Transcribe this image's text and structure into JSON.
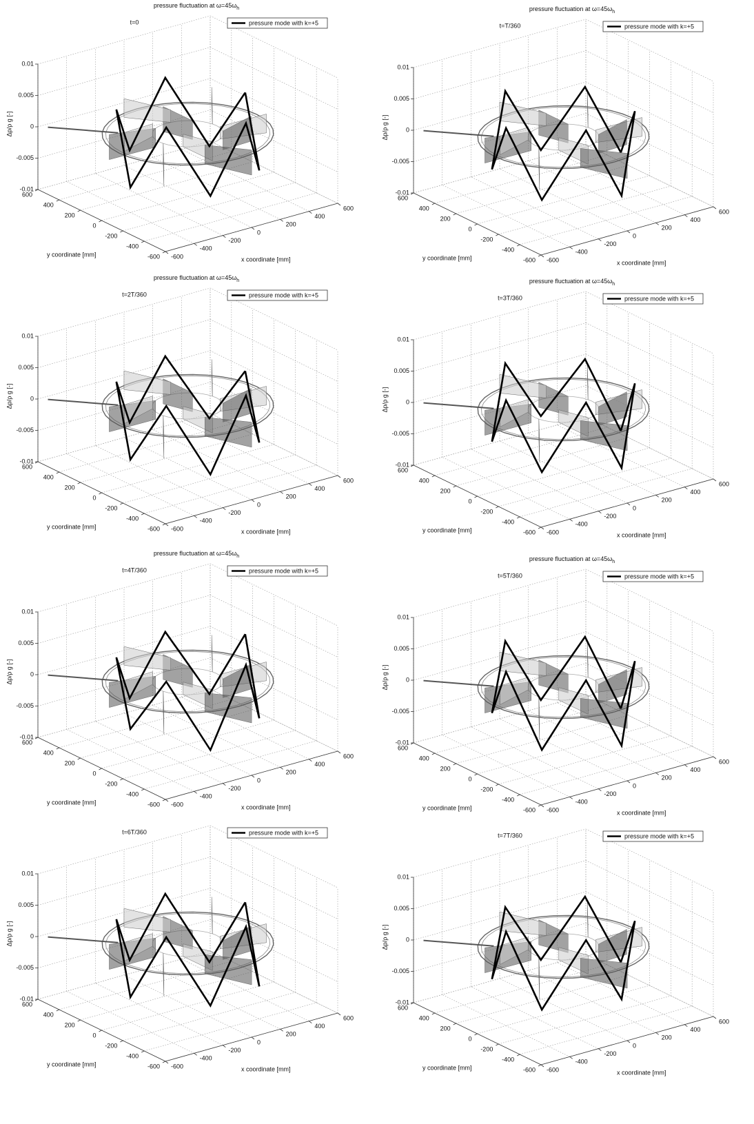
{
  "chart_data": [
    {
      "type": "line3d",
      "title": "pressure fluctuation at  ω=45ω",
      "title_subscript": "h",
      "annotation": "t=0",
      "xlabel": "x coordinate [mm]",
      "ylabel": "y coordinate [mm]",
      "zlabel": "Δp/ρ g [-]",
      "xlim": [
        -600,
        600
      ],
      "ylim": [
        -600,
        600
      ],
      "zlim": [
        -0.01,
        0.01
      ],
      "xticks": [
        -600,
        -400,
        -200,
        0,
        200,
        400,
        600
      ],
      "yticks": [
        -600,
        -400,
        -200,
        0,
        200,
        400,
        600
      ],
      "zticks": [
        -0.01,
        -0.005,
        0,
        0.005,
        0.01
      ],
      "grid": true,
      "legend": "upper right",
      "series": [
        {
          "name": "pressure mode with k=+5",
          "color": "#000000",
          "x": [
            400,
            324,
            124,
            -124,
            -324,
            -400,
            -324,
            -124,
            124,
            324,
            400
          ],
          "y": [
            0,
            235,
            380,
            380,
            235,
            0,
            -235,
            -380,
            -380,
            -235,
            0
          ],
          "values": [
            0.004,
            -0.006,
            0.005,
            -0.005,
            0.004,
            -0.006,
            0.005,
            -0.006,
            0.004,
            -0.006,
            0.004
          ]
        }
      ]
    },
    {
      "type": "line3d",
      "title": "pressure fluctuation at  ω=45ω",
      "title_subscript": "h",
      "annotation": "t=T/360",
      "xlabel": "x coordinate [mm]",
      "ylabel": "y coordinate [mm]",
      "zlabel": "Δp/ρ g [-]",
      "xlim": [
        -600,
        600
      ],
      "ylim": [
        -600,
        600
      ],
      "zlim": [
        -0.01,
        0.01
      ],
      "xticks": [
        -600,
        -400,
        -200,
        0,
        200,
        400,
        600
      ],
      "yticks": [
        -600,
        -400,
        -200,
        0,
        200,
        400,
        600
      ],
      "zticks": [
        -0.01,
        -0.005,
        0,
        0.005,
        0.01
      ],
      "grid": true,
      "legend": "upper right",
      "series": [
        {
          "name": "pressure mode with k=+5",
          "color": "#000000",
          "x": [
            400,
            324,
            124,
            -124,
            -324,
            -400,
            -324,
            -124,
            124,
            324,
            400
          ],
          "y": [
            0,
            235,
            380,
            380,
            235,
            0,
            -235,
            -380,
            -380,
            -235,
            0
          ],
          "values": [
            -0.005,
            0.004,
            -0.006,
            0.005,
            -0.005,
            0.004,
            -0.006,
            0.005,
            -0.007,
            0.004,
            -0.005
          ]
        }
      ]
    },
    {
      "type": "line3d",
      "title": "pressure fluctuation at  ω=45ω",
      "title_subscript": "h",
      "annotation": "t=2T/360",
      "xlabel": "x coordinate [mm]",
      "ylabel": "y coordinate [mm]",
      "zlabel": "Δp/ρ g [-]",
      "xlim": [
        -600,
        600
      ],
      "ylim": [
        -600,
        600
      ],
      "zlim": [
        -0.01,
        0.01
      ],
      "xticks": [
        -600,
        -400,
        -200,
        0,
        200,
        400,
        600
      ],
      "yticks": [
        -600,
        -400,
        -200,
        0,
        200,
        400,
        600
      ],
      "zticks": [
        -0.01,
        -0.005,
        0,
        0.005,
        0.01
      ],
      "grid": true,
      "legend": "upper right",
      "series": [
        {
          "name": "pressure mode with k=+5",
          "color": "#000000",
          "x": [
            400,
            324,
            124,
            -124,
            -324,
            -400,
            -324,
            -124,
            124,
            324,
            400
          ],
          "y": [
            0,
            235,
            380,
            380,
            235,
            0,
            -235,
            -380,
            -380,
            -235,
            0
          ],
          "values": [
            0.003,
            -0.006,
            0.004,
            -0.005,
            0.004,
            -0.006,
            0.004,
            -0.007,
            0.004,
            -0.006,
            0.003
          ]
        }
      ]
    },
    {
      "type": "line3d",
      "title": "pressure fluctuation at  ω=45ω",
      "title_subscript": "h",
      "annotation": "t=3T/360",
      "xlabel": "x coordinate [mm]",
      "ylabel": "y coordinate [mm]",
      "zlabel": "Δp/ρ g [-]",
      "xlim": [
        -600,
        600
      ],
      "ylim": [
        -600,
        600
      ],
      "zlim": [
        -0.01,
        0.01
      ],
      "xticks": [
        -600,
        -400,
        -200,
        0,
        200,
        400,
        600
      ],
      "yticks": [
        -600,
        -400,
        -200,
        0,
        200,
        400,
        600
      ],
      "zticks": [
        -0.01,
        -0.005,
        0,
        0.005,
        0.01
      ],
      "grid": true,
      "legend": "upper right",
      "series": [
        {
          "name": "pressure mode with k=+5",
          "color": "#000000",
          "x": [
            400,
            324,
            124,
            -124,
            -324,
            -400,
            -324,
            -124,
            124,
            324,
            400
          ],
          "y": [
            0,
            235,
            380,
            380,
            235,
            0,
            -235,
            -380,
            -380,
            -235,
            0
          ],
          "values": [
            -0.006,
            0.004,
            -0.005,
            0.005,
            -0.005,
            0.004,
            -0.006,
            0.005,
            -0.007,
            0.004,
            -0.006
          ]
        }
      ]
    },
    {
      "type": "line3d",
      "title": "pressure fluctuation at  ω=45ω",
      "title_subscript": "h",
      "annotation": "t=4T/360",
      "xlabel": "x coordinate [mm]",
      "ylabel": "y coordinate [mm]",
      "zlabel": "Δp/ρ g [-]",
      "xlim": [
        -600,
        600
      ],
      "ylim": [
        -600,
        600
      ],
      "zlim": [
        -0.01,
        0.01
      ],
      "xticks": [
        -600,
        -400,
        -200,
        0,
        200,
        400,
        600
      ],
      "yticks": [
        -600,
        -400,
        -200,
        0,
        200,
        400,
        600
      ],
      "zticks": [
        -0.01,
        -0.005,
        0,
        0.005,
        0.01
      ],
      "grid": true,
      "legend": "upper right",
      "series": [
        {
          "name": "pressure mode with k=+5",
          "color": "#000000",
          "x": [
            400,
            324,
            124,
            -124,
            -324,
            -400,
            -324,
            -124,
            124,
            324,
            400
          ],
          "y": [
            0,
            235,
            380,
            380,
            235,
            0,
            -235,
            -380,
            -380,
            -235,
            0
          ],
          "values": [
            0.005,
            -0.006,
            0.004,
            -0.005,
            0.004,
            -0.005,
            0.004,
            -0.007,
            0.005,
            -0.006,
            0.005
          ]
        }
      ]
    },
    {
      "type": "line3d",
      "title": "pressure fluctuation at  ω=45ω",
      "title_subscript": "h",
      "annotation": "t=5T/360",
      "xlabel": "x coordinate [mm]",
      "ylabel": "y coordinate [mm]",
      "zlabel": "Δp/ρ g [-]",
      "xlim": [
        -600,
        600
      ],
      "ylim": [
        -600,
        600
      ],
      "zlim": [
        -0.01,
        0.01
      ],
      "xticks": [
        -600,
        -400,
        -200,
        0,
        200,
        400,
        600
      ],
      "yticks": [
        -600,
        -400,
        -200,
        0,
        200,
        400,
        600
      ],
      "zticks": [
        -0.01,
        -0.005,
        0,
        0.005,
        0.01
      ],
      "grid": true,
      "legend": "upper right",
      "series": [
        {
          "name": "pressure mode with k=+5",
          "color": "#000000",
          "x": [
            400,
            324,
            124,
            -124,
            -324,
            -400,
            -324,
            -124,
            124,
            324,
            400
          ],
          "y": [
            0,
            235,
            380,
            380,
            235,
            0,
            -235,
            -380,
            -380,
            -235,
            0
          ],
          "values": [
            -0.006,
            0.004,
            -0.006,
            0.005,
            -0.004,
            0.005,
            -0.006,
            0.005,
            -0.007,
            0.004,
            -0.006
          ]
        }
      ]
    },
    {
      "type": "line3d",
      "annotation": "t=6T/360",
      "xlabel": "x coordinate [mm]",
      "ylabel": "y coordinate [mm]",
      "zlabel": "Δp/ρ g [-]",
      "xlim": [
        -600,
        600
      ],
      "ylim": [
        -600,
        600
      ],
      "zlim": [
        -0.01,
        0.01
      ],
      "xticks": [
        -600,
        -400,
        -200,
        0,
        200,
        400,
        600
      ],
      "yticks": [
        -600,
        -400,
        -200,
        0,
        200,
        400,
        600
      ],
      "zticks": [
        -0.01,
        -0.005,
        0,
        0.005,
        0.01
      ],
      "grid": true,
      "legend": "upper right",
      "series": [
        {
          "name": "pressure mode with k=+5",
          "color": "#000000",
          "x": [
            400,
            324,
            124,
            -124,
            -324,
            -400,
            -324,
            -124,
            124,
            324,
            400
          ],
          "y": [
            0,
            235,
            380,
            380,
            235,
            0,
            -235,
            -380,
            -380,
            -235,
            0
          ],
          "values": [
            0.004,
            -0.007,
            0.004,
            -0.005,
            0.004,
            -0.006,
            0.005,
            -0.006,
            0.005,
            -0.007,
            0.004
          ]
        }
      ]
    },
    {
      "type": "line3d",
      "annotation": "t=7T/360",
      "xlabel": "x coordinate [mm]",
      "ylabel": "y coordinate [mm]",
      "zlabel": "Δp/ρ g [-]",
      "xlim": [
        -600,
        600
      ],
      "ylim": [
        -600,
        600
      ],
      "zlim": [
        -0.01,
        0.01
      ],
      "xticks": [
        -600,
        -400,
        -200,
        0,
        200,
        400,
        600
      ],
      "yticks": [
        -600,
        -400,
        -200,
        0,
        200,
        400,
        600
      ],
      "zticks": [
        -0.01,
        -0.005,
        0,
        0.005,
        0.01
      ],
      "grid": true,
      "legend": "upper right",
      "series": [
        {
          "name": "pressure mode with k=+5",
          "color": "#000000",
          "x": [
            400,
            324,
            124,
            -124,
            -324,
            -400,
            -324,
            -124,
            124,
            324,
            400
          ],
          "y": [
            0,
            235,
            380,
            380,
            235,
            0,
            -235,
            -380,
            -380,
            -235,
            0
          ],
          "values": [
            -0.005,
            0.004,
            -0.006,
            0.004,
            -0.005,
            0.005,
            -0.006,
            0.005,
            -0.006,
            0.004,
            -0.005
          ]
        }
      ]
    }
  ]
}
